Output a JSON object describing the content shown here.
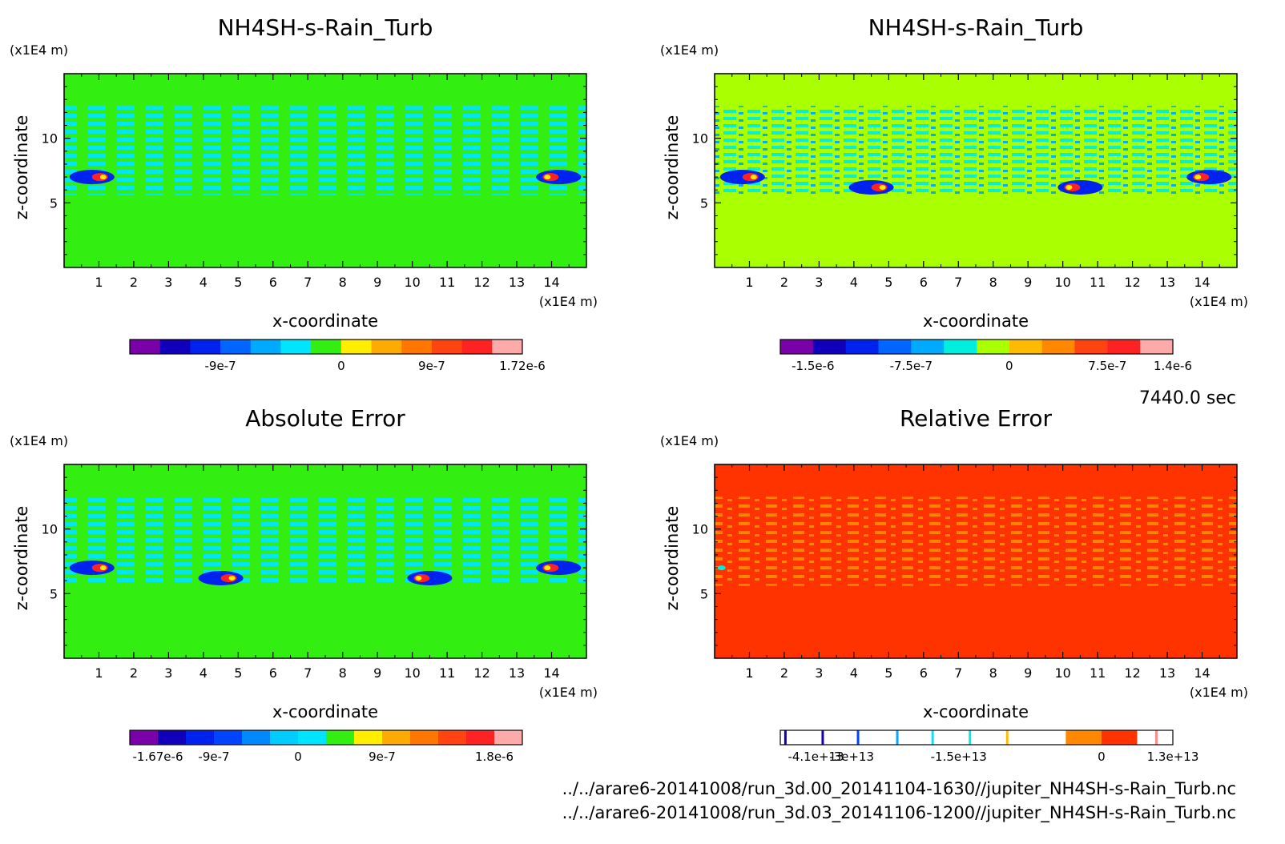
{
  "time_label": "7440.0 sec",
  "footer": {
    "file1": "../../arare6-20141008/run_3d.00_20141104-1630//jupiter_NH4SH-s-Rain_Turb.nc",
    "file2": "../../arare6-20141008/run_3d.03_20141106-1200//jupiter_NH4SH-s-Rain_Turb.nc"
  },
  "chart_data": [
    {
      "type": "heatmap",
      "title": "NH4SH-s-Rain_Turb",
      "xlabel": "x-coordinate",
      "ylabel": "z-coordinate",
      "x_unit": "(x1E4 m)",
      "z_unit": "(x1E4 m)",
      "xlim": [
        0,
        15
      ],
      "zlim": [
        0,
        15
      ],
      "x_ticks": [
        1,
        2,
        3,
        4,
        5,
        6,
        7,
        8,
        9,
        10,
        11,
        12,
        13,
        14
      ],
      "z_ticks": [
        5,
        10
      ],
      "background": "#33ee11",
      "colorbar": {
        "colors": [
          "#7a00aa",
          "#1100bb",
          "#0022ee",
          "#0066ff",
          "#00aaff",
          "#00e5ff",
          "#33ee11",
          "#ffee00",
          "#ffaa00",
          "#ff7700",
          "#ff4411",
          "#ff2222",
          "#ffaaaa"
        ],
        "tick_labels": [
          "-9e-7",
          "0",
          "9e-7",
          "1.72e-6"
        ],
        "tick_index": [
          2,
          6,
          9,
          12
        ]
      }
    },
    {
      "type": "heatmap",
      "title": "NH4SH-s-Rain_Turb",
      "xlabel": "x-coordinate",
      "ylabel": "z-coordinate",
      "x_unit": "(x1E4 m)",
      "z_unit": "(x1E4 m)",
      "xlim": [
        0,
        15
      ],
      "zlim": [
        0,
        15
      ],
      "x_ticks": [
        1,
        2,
        3,
        4,
        5,
        6,
        7,
        8,
        9,
        10,
        11,
        12,
        13,
        14
      ],
      "z_ticks": [
        5,
        10
      ],
      "background": "#aaff00",
      "colorbar": {
        "colors": [
          "#7a00aa",
          "#1100bb",
          "#0022ee",
          "#0066ff",
          "#00aaff",
          "#00eedd",
          "#aaff00",
          "#ffbb00",
          "#ff8800",
          "#ff4411",
          "#ff2222",
          "#ffaaaa"
        ],
        "tick_labels": [
          "-1.5e-6",
          "-7.5e-7",
          "0",
          "7.5e-7",
          "1.4e-6"
        ],
        "tick_index": [
          0,
          3,
          6,
          9,
          11
        ]
      }
    },
    {
      "type": "heatmap",
      "title": "Absolute Error",
      "xlabel": "x-coordinate",
      "ylabel": "z-coordinate",
      "x_unit": "(x1E4 m)",
      "z_unit": "(x1E4 m)",
      "xlim": [
        0,
        15
      ],
      "zlim": [
        0,
        15
      ],
      "x_ticks": [
        1,
        2,
        3,
        4,
        5,
        6,
        7,
        8,
        9,
        10,
        11,
        12,
        13,
        14
      ],
      "z_ticks": [
        5,
        10
      ],
      "background": "#33ee11",
      "colorbar": {
        "colors": [
          "#7a00aa",
          "#1100bb",
          "#0022ee",
          "#0044ff",
          "#0088ff",
          "#00ccff",
          "#00e5ff",
          "#33ee11",
          "#ffee00",
          "#ffaa00",
          "#ff7700",
          "#ff4411",
          "#ff2222",
          "#ffaaaa"
        ],
        "tick_labels": [
          "-1.67e-6",
          "-9e-7",
          "0",
          "9e-7",
          "1.8e-6"
        ],
        "tick_index": [
          0,
          2,
          5,
          8,
          12
        ]
      }
    },
    {
      "type": "heatmap",
      "title": "Relative Error",
      "xlabel": "x-coordinate",
      "ylabel": "z-coordinate",
      "x_unit": "(x1E4 m)",
      "z_unit": "(x1E4 m)",
      "xlim": [
        0,
        15
      ],
      "zlim": [
        0,
        15
      ],
      "x_ticks": [
        1,
        2,
        3,
        4,
        5,
        6,
        7,
        8,
        9,
        10,
        11,
        12,
        13,
        14
      ],
      "z_ticks": [
        5,
        10
      ],
      "background": "#ff3300",
      "colorbar": {
        "colors": [
          "#ffffff",
          "#ffffff",
          "#ffffff",
          "#ffffff",
          "#ffffff",
          "#ffffff",
          "#ffffff",
          "#ffffff",
          "#ff8800",
          "#ff3300",
          "#ffffff"
        ],
        "tick_labels": [
          "-4.1e+13",
          "-3e+13",
          "-1.5e+13",
          "0",
          "1.3e+13"
        ],
        "tick_index": [
          0,
          1,
          4,
          8,
          10
        ]
      }
    }
  ]
}
